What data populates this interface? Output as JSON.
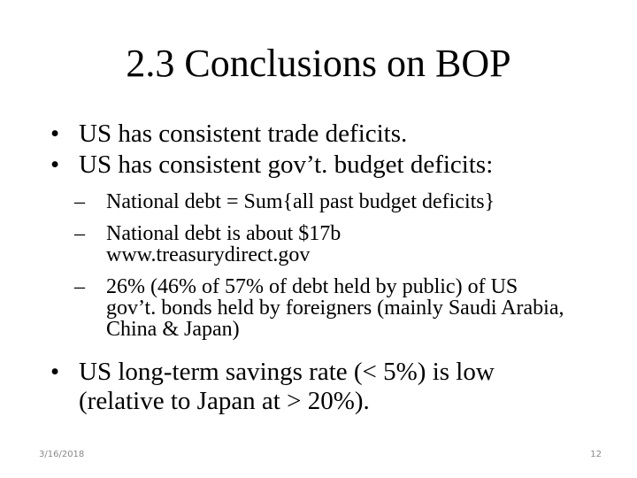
{
  "slide": {
    "title": "2.3 Conclusions on BOP",
    "bullets": [
      {
        "text": "US has consistent trade deficits."
      },
      {
        "text": "US has consistent gov’t. budget deficits:"
      },
      {
        "text": "US long-term savings rate (< 5%) is low (relative to Japan at > 20%)."
      }
    ],
    "sub_bullets": [
      {
        "text": "National debt = Sum{all past budget deficits}"
      },
      {
        "text": "National debt is about $17b www.treasurydirect.gov"
      },
      {
        "text": "26% (46% of 57% of debt held by public) of US gov’t. bonds held by foreigners (mainly Saudi Arabia, China & Japan)"
      }
    ],
    "bullet_glyph": "•",
    "dash_glyph": "–"
  },
  "footer": {
    "date": "3/16/2018",
    "page_number": "12"
  }
}
